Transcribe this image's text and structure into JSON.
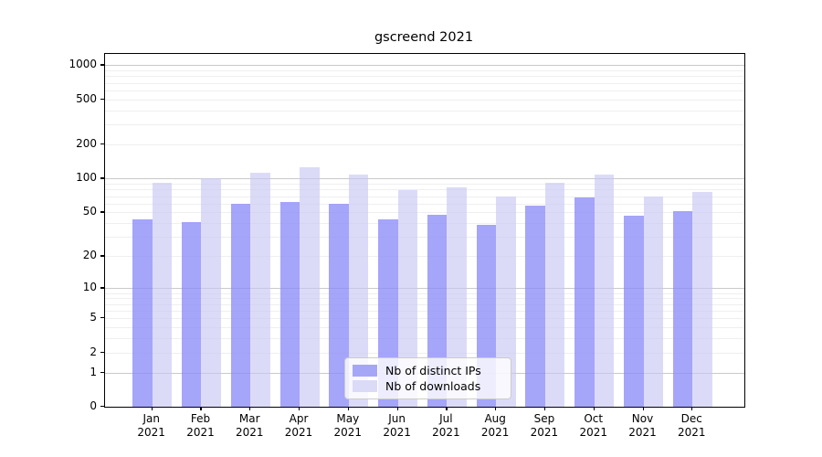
{
  "chart_data": {
    "type": "bar",
    "title": "gscreend 2021",
    "categories": [
      "Jan 2021",
      "Feb 2021",
      "Mar 2021",
      "Apr 2021",
      "May 2021",
      "Jun 2021",
      "Jul 2021",
      "Aug 2021",
      "Sep 2021",
      "Oct 2021",
      "Nov 2021",
      "Dec 2021"
    ],
    "series": [
      {
        "name": "Nb of distinct IPs",
        "fill": "rgba(140,140,248,0.78)",
        "legend_color": "#a6a6f7",
        "values": [
          43,
          41,
          60,
          62,
          60,
          43,
          48,
          39,
          57,
          68,
          47,
          51
        ]
      },
      {
        "name": "Nb of downloads",
        "fill": "rgba(200,200,245,0.65)",
        "legend_color": "#dbdbf7",
        "values": [
          92,
          100,
          113,
          127,
          108,
          79,
          83,
          69,
          92,
          109,
          70,
          76
        ]
      }
    ],
    "xlabel": "",
    "ylabel": "",
    "y_ticks": [
      0,
      1,
      2,
      5,
      10,
      20,
      50,
      100,
      200,
      500,
      1000
    ],
    "scale": "log10(1+x)",
    "ylim": [
      0,
      1290
    ],
    "grid": {
      "on": true,
      "major_color": "#c9c9c9",
      "minor_color": "#efefef"
    },
    "legend_position": "bottom-center",
    "axis_color": "#000000",
    "background": "#ffffff"
  }
}
